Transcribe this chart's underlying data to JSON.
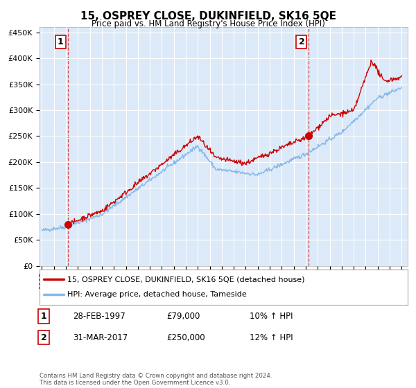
{
  "title": "15, OSPREY CLOSE, DUKINFIELD, SK16 5QE",
  "subtitle": "Price paid vs. HM Land Registry's House Price Index (HPI)",
  "legend_line1": "15, OSPREY CLOSE, DUKINFIELD, SK16 5QE (detached house)",
  "legend_line2": "HPI: Average price, detached house, Tameside",
  "annotation1_label": "1",
  "annotation1_date": "28-FEB-1997",
  "annotation1_price": "£79,000",
  "annotation1_hpi": "10% ↑ HPI",
  "annotation2_label": "2",
  "annotation2_date": "31-MAR-2017",
  "annotation2_price": "£250,000",
  "annotation2_hpi": "12% ↑ HPI",
  "footer": "Contains HM Land Registry data © Crown copyright and database right 2024.\nThis data is licensed under the Open Government Licence v3.0.",
  "bg_color": "#dce9f8",
  "line_color_red": "#cc0000",
  "line_color_blue": "#85b8e8",
  "ylim": [
    0,
    460000
  ],
  "yticks": [
    0,
    50000,
    100000,
    150000,
    200000,
    250000,
    300000,
    350000,
    400000,
    450000
  ],
  "sale1_x": 1997.15,
  "sale1_y": 79000,
  "sale2_x": 2017.25,
  "sale2_y": 250000,
  "xmin": 1994.8,
  "xmax": 2025.5
}
